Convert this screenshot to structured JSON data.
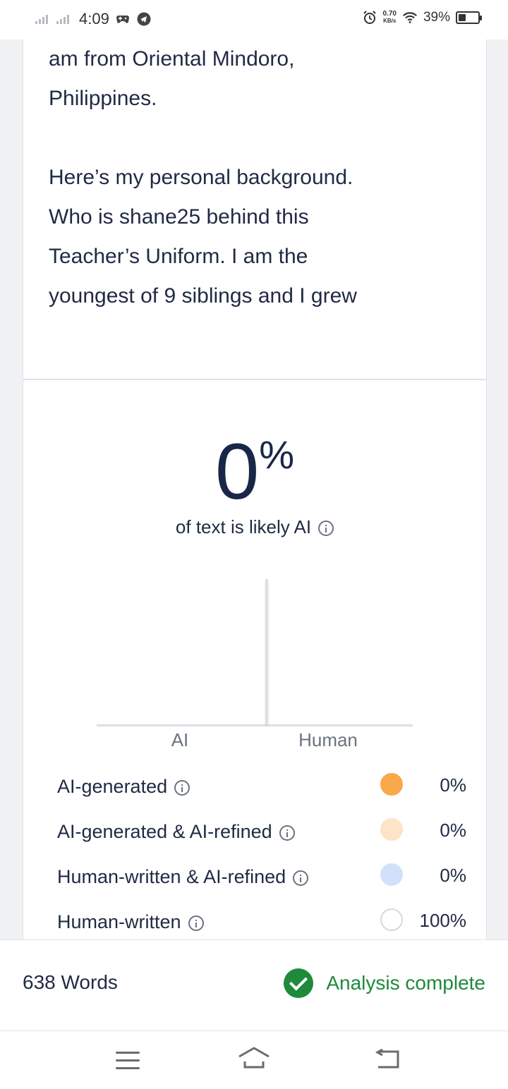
{
  "status_bar": {
    "time": "4:09",
    "network_speed_value": "0.70",
    "network_speed_unit": "KB/s",
    "battery": "39%",
    "battery_level": 0.39,
    "icons": [
      "signal-icon",
      "signal-icon",
      "game-controller-icon",
      "telegram-icon",
      "alarm-icon",
      "wifi-icon",
      "battery-icon"
    ]
  },
  "essay": {
    "paragraphs": [
      "am from Oriental Mindoro, Philippines.",
      "Here’s my personal background. Who is shane25 behind this Teacher’s Uniform. I am the youngest of 9 siblings and I grew"
    ],
    "lines": [
      "am from Oriental Mindoro,",
      "Philippines.",
      "Here’s my personal background.",
      "Who is shane25 behind this",
      "Teacher’s Uniform. I am the",
      "youngest of 9 siblings and I grew"
    ]
  },
  "result": {
    "percent": "0",
    "percent_sign": "%",
    "subtitle": "of text is likely AI"
  },
  "chart_data": {
    "type": "bar",
    "categories": [
      "AI",
      "Human"
    ],
    "values": [
      0,
      100
    ],
    "ylim": [
      0,
      100
    ],
    "grid": false
  },
  "legend": {
    "items": [
      {
        "label": "AI-generated",
        "value": "0%",
        "color": "#f9a84a",
        "border": "#f9a84a"
      },
      {
        "label": "AI-generated & AI-refined",
        "value": "0%",
        "color": "#fde4c8",
        "border": "#fde4c8"
      },
      {
        "label": "Human-written & AI-refined",
        "value": "0%",
        "color": "#d2e1fb",
        "border": "#d2e1fb"
      },
      {
        "label": "Human-written",
        "value": "100%",
        "color": "#ffffff",
        "border": "#d6d9de"
      }
    ]
  },
  "footer": {
    "word_count": "638 Words",
    "status": "Analysis complete",
    "status_color": "#1f8a3b"
  },
  "navbar": {
    "icons": [
      "menu-icon",
      "home-icon",
      "back-icon"
    ]
  }
}
